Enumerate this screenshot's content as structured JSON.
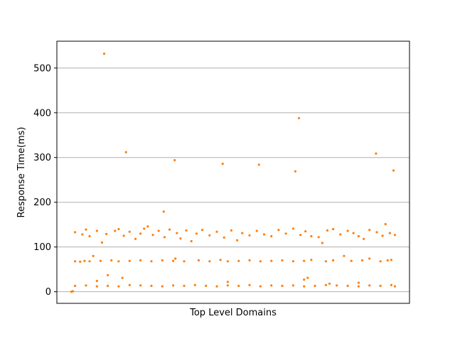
{
  "chart_data": {
    "type": "scatter",
    "xlabel": "Top Level Domains",
    "ylabel": "Response Time(ms)",
    "x_ticks_shown": false,
    "ylim": [
      -26,
      560
    ],
    "yticks": [
      0,
      100,
      200,
      300,
      400,
      500
    ],
    "ytick_labels": [
      "0",
      "100",
      "200",
      "300",
      "400",
      "500"
    ],
    "grid": "horizontal",
    "marker_color": "#ff7f0e",
    "grid_color": "#b0b0b0",
    "points_note": "approximate; x is the domain index",
    "series": [
      {
        "values": [
          [
            0,
            0
          ],
          [
            2,
            1
          ],
          [
            45,
            532
          ],
          [
            75,
            312
          ],
          [
            142,
            294
          ],
          [
            127,
            179
          ],
          [
            208,
            286
          ],
          [
            258,
            284
          ],
          [
            308,
            269
          ],
          [
            313,
            388
          ],
          [
            419,
            309
          ],
          [
            443,
            271
          ],
          [
            35,
            24
          ],
          [
            50,
            37
          ],
          [
            70,
            31
          ],
          [
            215,
            22
          ],
          [
            320,
            27
          ],
          [
            325,
            31
          ],
          [
            355,
            18
          ],
          [
            395,
            20
          ],
          [
            5,
            68
          ],
          [
            12,
            67
          ],
          [
            18,
            69
          ],
          [
            25,
            68
          ],
          [
            30,
            80
          ],
          [
            40,
            69
          ],
          [
            55,
            70
          ],
          [
            65,
            68
          ],
          [
            80,
            69
          ],
          [
            95,
            70
          ],
          [
            110,
            68
          ],
          [
            125,
            70
          ],
          [
            140,
            69
          ],
          [
            143,
            74
          ],
          [
            155,
            68
          ],
          [
            175,
            70
          ],
          [
            190,
            68
          ],
          [
            205,
            71
          ],
          [
            215,
            68
          ],
          [
            230,
            69
          ],
          [
            245,
            70
          ],
          [
            260,
            68
          ],
          [
            275,
            69
          ],
          [
            290,
            70
          ],
          [
            305,
            68
          ],
          [
            320,
            69
          ],
          [
            330,
            71
          ],
          [
            350,
            68
          ],
          [
            360,
            70
          ],
          [
            375,
            80
          ],
          [
            385,
            69
          ],
          [
            400,
            70
          ],
          [
            410,
            74
          ],
          [
            425,
            68
          ],
          [
            435,
            70
          ],
          [
            440,
            71
          ],
          [
            5,
            133
          ],
          [
            15,
            128
          ],
          [
            20,
            139
          ],
          [
            25,
            124
          ],
          [
            35,
            136
          ],
          [
            42,
            110
          ],
          [
            48,
            129
          ],
          [
            60,
            136
          ],
          [
            65,
            140
          ],
          [
            72,
            125
          ],
          [
            80,
            134
          ],
          [
            88,
            118
          ],
          [
            95,
            130
          ],
          [
            100,
            141
          ],
          [
            105,
            146
          ],
          [
            112,
            127
          ],
          [
            120,
            136
          ],
          [
            128,
            122
          ],
          [
            135,
            139
          ],
          [
            145,
            131
          ],
          [
            150,
            119
          ],
          [
            158,
            137
          ],
          [
            165,
            113
          ],
          [
            172,
            130
          ],
          [
            180,
            138
          ],
          [
            190,
            126
          ],
          [
            200,
            134
          ],
          [
            210,
            121
          ],
          [
            220,
            137
          ],
          [
            228,
            115
          ],
          [
            235,
            131
          ],
          [
            245,
            126
          ],
          [
            255,
            136
          ],
          [
            265,
            128
          ],
          [
            275,
            124
          ],
          [
            285,
            138
          ],
          [
            295,
            130
          ],
          [
            305,
            141
          ],
          [
            315,
            127
          ],
          [
            322,
            135
          ],
          [
            330,
            124
          ],
          [
            340,
            122
          ],
          [
            345,
            109
          ],
          [
            352,
            137
          ],
          [
            360,
            140
          ],
          [
            370,
            128
          ],
          [
            380,
            136
          ],
          [
            388,
            131
          ],
          [
            395,
            124
          ],
          [
            402,
            118
          ],
          [
            410,
            138
          ],
          [
            420,
            133
          ],
          [
            428,
            125
          ],
          [
            432,
            151
          ],
          [
            438,
            131
          ],
          [
            445,
            127
          ],
          [
            5,
            13
          ],
          [
            20,
            14
          ],
          [
            35,
            12
          ],
          [
            50,
            13
          ],
          [
            65,
            12
          ],
          [
            80,
            15
          ],
          [
            95,
            14
          ],
          [
            110,
            13
          ],
          [
            125,
            12
          ],
          [
            140,
            14
          ],
          [
            155,
            13
          ],
          [
            170,
            15
          ],
          [
            185,
            13
          ],
          [
            200,
            12
          ],
          [
            215,
            14
          ],
          [
            230,
            13
          ],
          [
            245,
            15
          ],
          [
            260,
            12
          ],
          [
            275,
            14
          ],
          [
            290,
            13
          ],
          [
            305,
            14
          ],
          [
            320,
            12
          ],
          [
            335,
            13
          ],
          [
            350,
            15
          ],
          [
            365,
            14
          ],
          [
            380,
            13
          ],
          [
            395,
            12
          ],
          [
            410,
            14
          ],
          [
            425,
            13
          ],
          [
            440,
            15
          ],
          [
            445,
            12
          ]
        ]
      }
    ]
  }
}
